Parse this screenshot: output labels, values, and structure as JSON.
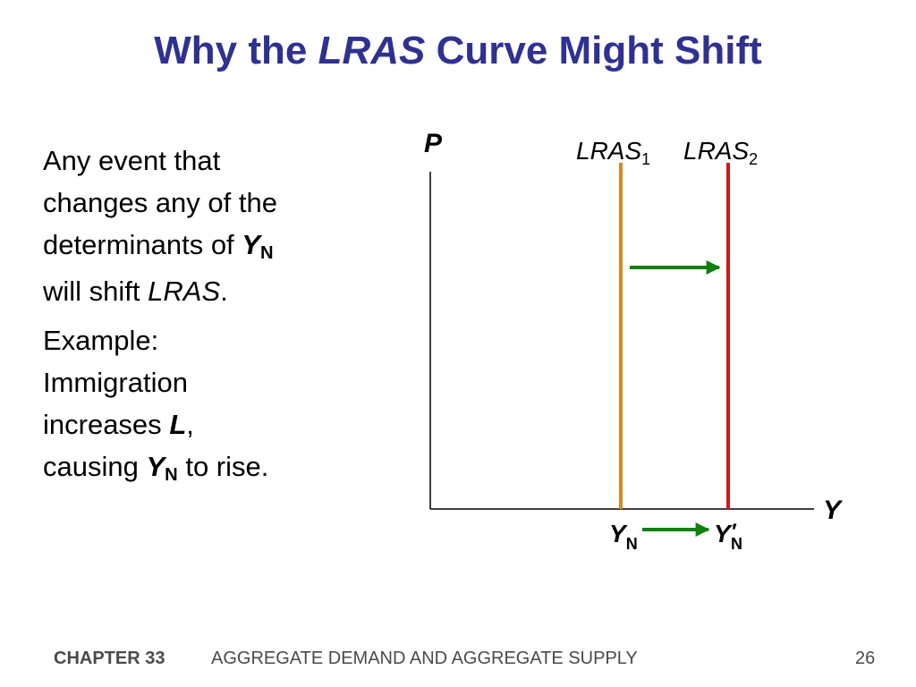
{
  "slide": {
    "title_prefix": "Why the",
    "title_italic": "LRAS",
    "title_suffix": "Curve Might Shift",
    "page_number": "26"
  },
  "paragraph1": {
    "line1": "Any event that",
    "line2": "changes any of the",
    "line3_text": "determinants of",
    "var_y": "Y",
    "var_n": "N",
    "line4_text": "will shift",
    "line4_italic": "LRAS",
    "line4_end": "."
  },
  "paragraph2": {
    "line1": "Example:",
    "line2": "Immigration",
    "line3_text": "increases",
    "var_l": "L",
    "comma": ",",
    "line4_text": "causing",
    "var_y": "Y",
    "var_n": "N",
    "line4_end": "to rise."
  },
  "diagram": {
    "y_axis_label": "P",
    "x_axis_label": "Y",
    "curve1": {
      "base": "LRAS",
      "subscript": "1",
      "color": "#d4891c"
    },
    "curve2": {
      "base": "LRAS",
      "subscript": "2",
      "color": "#cc1b1b"
    },
    "tick1": {
      "var": "Y",
      "sub": "N"
    },
    "tick2": {
      "var": "Y",
      "prime": "′",
      "sub": "N"
    },
    "arrow_color": "#108010",
    "axis_color": "#000000"
  },
  "footer": {
    "chapter": "CHAPTER 33",
    "course": "AGGREGATE DEMAND AND AGGREGATE SUPPLY"
  }
}
